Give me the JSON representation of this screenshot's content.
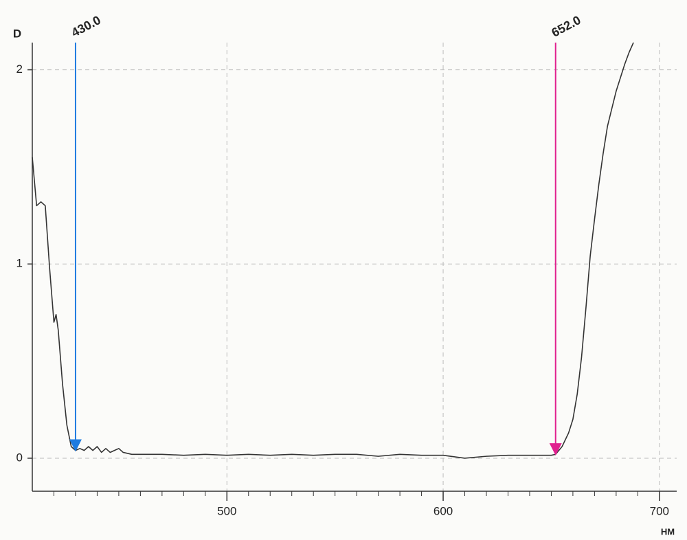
{
  "chart_data": {
    "type": "line",
    "y_label": "D",
    "x_label": "НМ",
    "xlim": [
      410,
      708
    ],
    "ylim": [
      -0.17,
      2.14
    ],
    "xticks": [
      500,
      600,
      700
    ],
    "xminorticks": [
      420,
      430,
      440,
      450,
      460,
      470,
      480,
      490,
      510,
      520,
      530,
      540,
      550,
      560,
      570,
      580,
      590,
      610,
      620,
      630,
      640,
      650,
      660,
      670,
      680,
      690
    ],
    "yticks": [
      0,
      1,
      2
    ],
    "grid": true,
    "series": [
      {
        "color": "#333333",
        "x": [
          410,
          412,
          414,
          416,
          418,
          420,
          421,
          422,
          424,
          426,
          428,
          430,
          432,
          434,
          436,
          438,
          440,
          442,
          444,
          446,
          448,
          450,
          452,
          456,
          460,
          470,
          480,
          490,
          500,
          510,
          520,
          530,
          540,
          550,
          560,
          570,
          580,
          590,
          600,
          610,
          620,
          630,
          640,
          650,
          652,
          655,
          658,
          660,
          662,
          664,
          666,
          668,
          670,
          672,
          674,
          676,
          678,
          680,
          682,
          684,
          686,
          688
        ],
        "values": [
          1.55,
          1.3,
          1.32,
          1.3,
          0.98,
          0.7,
          0.74,
          0.66,
          0.38,
          0.17,
          0.06,
          0.04,
          0.05,
          0.04,
          0.06,
          0.04,
          0.06,
          0.03,
          0.05,
          0.03,
          0.04,
          0.05,
          0.03,
          0.02,
          0.02,
          0.02,
          0.015,
          0.02,
          0.015,
          0.02,
          0.015,
          0.02,
          0.015,
          0.02,
          0.02,
          0.01,
          0.02,
          0.015,
          0.015,
          0.0,
          0.01,
          0.015,
          0.015,
          0.015,
          0.02,
          0.06,
          0.13,
          0.2,
          0.33,
          0.52,
          0.77,
          1.04,
          1.23,
          1.41,
          1.57,
          1.71,
          1.8,
          1.89,
          1.96,
          2.03,
          2.09,
          2.14
        ]
      }
    ],
    "annotations": [
      {
        "x": 430,
        "y": 0.04,
        "label": "430.0",
        "color": "#1e7be0"
      },
      {
        "x": 652,
        "y": 0.02,
        "label": "652.0",
        "color": "#e0208f"
      }
    ]
  }
}
